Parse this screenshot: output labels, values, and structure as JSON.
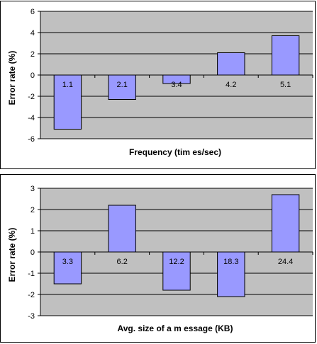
{
  "chart_data": [
    {
      "type": "bar",
      "categories": [
        "1.1",
        "2.1",
        "3.4",
        "4.2",
        "5.1"
      ],
      "values": [
        -5.1,
        -2.3,
        -0.8,
        2.1,
        3.7
      ],
      "xlabel": "Frequency (tim es/sec)",
      "ylabel": "Error rate (%)",
      "ylim": [
        -6,
        6
      ],
      "yticks": [
        "6",
        "4",
        "2",
        "0",
        "-2",
        "-4",
        "-6"
      ],
      "ytick_values": [
        6,
        4,
        2,
        0,
        -2,
        -4,
        -6
      ],
      "grid": true,
      "colors": {
        "plot_bg": "#c0c0c0",
        "bar": "#9999ff",
        "grid": "#000000"
      }
    },
    {
      "type": "bar",
      "categories": [
        "3.3",
        "6.2",
        "12.2",
        "18.3",
        "24.4"
      ],
      "values": [
        -1.5,
        2.2,
        -1.8,
        -2.1,
        2.7
      ],
      "xlabel": "Avg. size of a m essage (KB)",
      "ylabel": "Error rate (%)",
      "ylim": [
        -3,
        3
      ],
      "yticks": [
        "3",
        "2",
        "1",
        "0",
        "-1",
        "-2",
        "-3"
      ],
      "ytick_values": [
        3,
        2,
        1,
        0,
        -1,
        -2,
        -3
      ],
      "grid": true,
      "colors": {
        "plot_bg": "#c0c0c0",
        "bar": "#9999ff",
        "grid": "#000000"
      }
    }
  ]
}
